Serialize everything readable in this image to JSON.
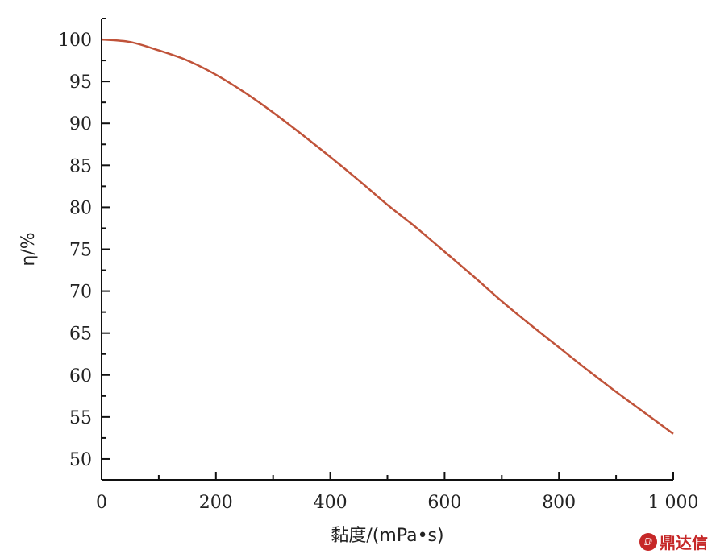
{
  "chart_data": {
    "type": "line",
    "xlabel": "黏度/(mPa•s)",
    "ylabel": "η/%",
    "xlim": [
      0,
      1000
    ],
    "ylim": [
      47.5,
      102.5
    ],
    "x_ticks": [
      0,
      200,
      400,
      600,
      800,
      1000
    ],
    "x_tick_labels": [
      "0",
      "200",
      "400",
      "600",
      "800",
      "1 000"
    ],
    "y_ticks": [
      50,
      55,
      60,
      65,
      70,
      75,
      80,
      85,
      90,
      95,
      100
    ],
    "y_tick_labels": [
      "50",
      "55",
      "60",
      "65",
      "70",
      "75",
      "80",
      "85",
      "90",
      "95",
      "100"
    ],
    "grid": false,
    "series": [
      {
        "color": "#c0533a",
        "x": [
          0,
          50,
          100,
          150,
          200,
          250,
          300,
          350,
          400,
          450,
          500,
          550,
          600,
          650,
          700,
          750,
          800,
          850,
          900,
          950,
          1000
        ],
        "y": [
          100,
          99.7,
          98.7,
          97.5,
          95.8,
          93.7,
          91.3,
          88.7,
          86.0,
          83.2,
          80.3,
          77.6,
          74.7,
          71.8,
          68.8,
          66.0,
          63.3,
          60.6,
          58.0,
          55.5,
          53.0
        ]
      }
    ]
  },
  "watermark": {
    "icon_text": "ⅅ",
    "text": "鼎达信",
    "color": "#c62828"
  }
}
